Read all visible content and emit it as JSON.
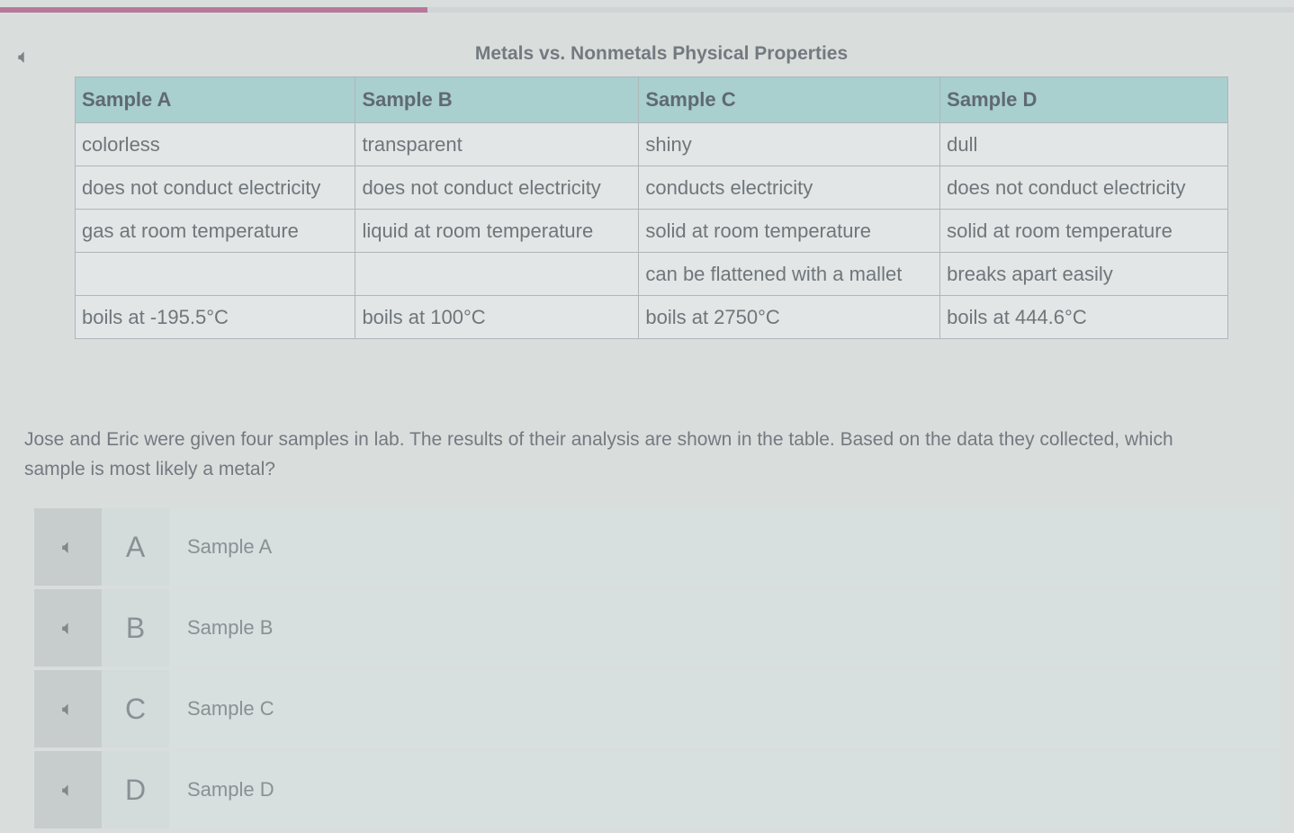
{
  "progress_percent": 33,
  "colors": {
    "progress": "#b7789a",
    "header": "#a9cfcf"
  },
  "audio_icon": "speaker-muted-icon",
  "title": "Metals vs. Nonmetals Physical Properties",
  "table": {
    "headers": [
      "Sample A",
      "Sample B",
      "Sample C",
      "Sample D"
    ],
    "rows": [
      [
        "colorless",
        "transparent",
        "shiny",
        "dull"
      ],
      [
        "does not conduct electricity",
        "does not conduct electricity",
        "conducts electricity",
        "does not conduct electricity"
      ],
      [
        "gas at room temperature",
        "liquid at room temperature",
        "solid at room temperature",
        "solid at room temperature"
      ],
      [
        "",
        "",
        "can be flattened with a mallet",
        "breaks apart easily"
      ],
      [
        "boils at -195.5°C",
        "boils at 100°C",
        "boils at 2750°C",
        "boils at 444.6°C"
      ]
    ]
  },
  "question": "Jose and Eric were given four samples in lab. The results of their analysis are shown in the table. Based on the data they collected, which sample is most likely a metal?",
  "options": [
    {
      "letter": "A",
      "text": "Sample A"
    },
    {
      "letter": "B",
      "text": "Sample B"
    },
    {
      "letter": "C",
      "text": "Sample C"
    },
    {
      "letter": "D",
      "text": "Sample D"
    }
  ]
}
